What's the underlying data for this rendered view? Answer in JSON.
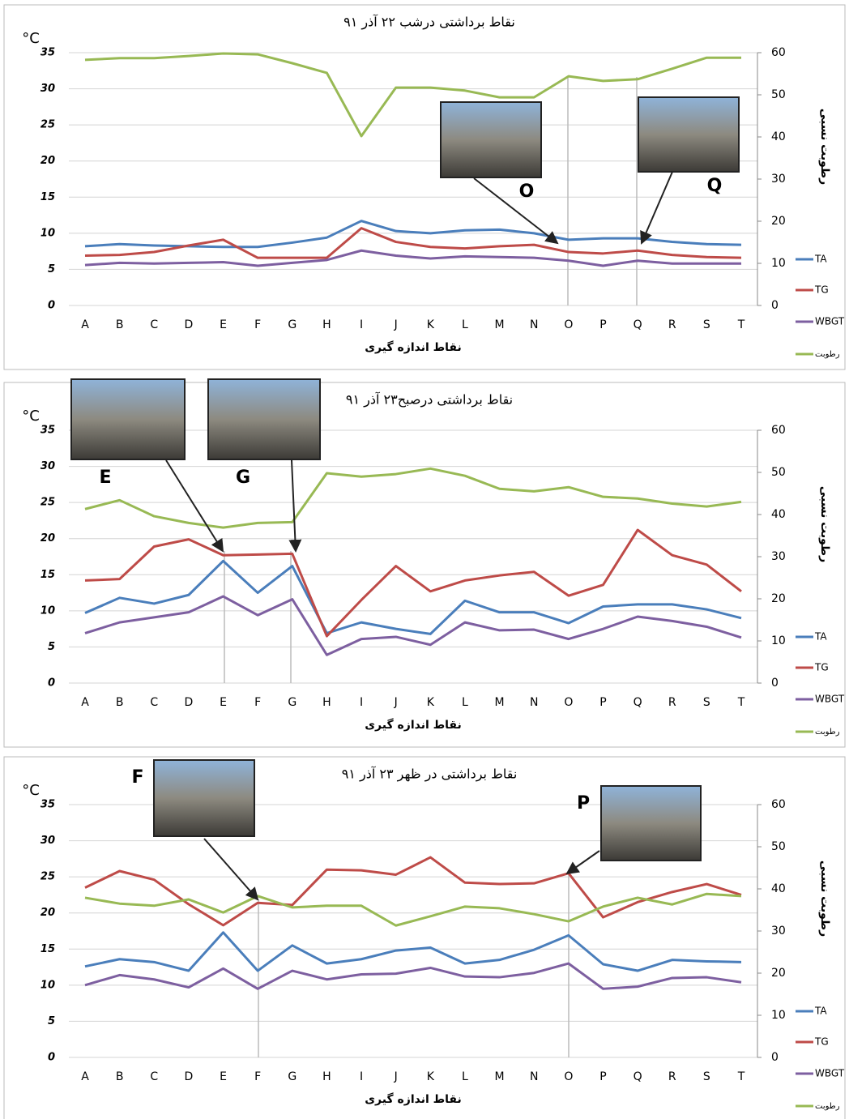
{
  "chart_data": [
    {
      "type": "line",
      "title": "نقاط برداشتی درشب ۲۲ آذر ۹۱",
      "y_label": "°C",
      "y2_label": "رطوبت نسبی",
      "x_label": "نقاط اندازه گیری",
      "annotations": [
        "O",
        "Q"
      ],
      "categories": [
        "A",
        "B",
        "C",
        "D",
        "E",
        "F",
        "G",
        "H",
        "I",
        "J",
        "K",
        "L",
        "M",
        "N",
        "O",
        "P",
        "Q",
        "R",
        "S",
        "T"
      ],
      "ylim": [
        0,
        35
      ],
      "yticks": [
        0,
        5,
        10,
        15,
        20,
        25,
        30,
        35
      ],
      "y2lim": [
        0,
        60
      ],
      "y2ticks": [
        0,
        10,
        20,
        30,
        40,
        50,
        60
      ],
      "grid": true,
      "legend": "right",
      "series": [
        {
          "name": "TA",
          "color": "#4a7ebb",
          "values": [
            8.2,
            8.5,
            8.3,
            8.2,
            8.1,
            8.1,
            8.7,
            9.4,
            11.7,
            10.3,
            10.0,
            10.4,
            10.5,
            10.0,
            9.1,
            9.3,
            9.3,
            8.8,
            8.5,
            8.4
          ]
        },
        {
          "name": "TG",
          "color": "#be4b48",
          "values": [
            6.9,
            7.0,
            7.4,
            8.3,
            9.1,
            6.6,
            6.6,
            6.6,
            10.7,
            8.8,
            8.1,
            7.9,
            8.2,
            8.4,
            7.4,
            7.2,
            7.6,
            7.0,
            6.7,
            6.6
          ]
        },
        {
          "name": "WBGT",
          "color": "#7d5fa0",
          "values": [
            5.6,
            5.9,
            5.8,
            5.9,
            6.0,
            5.5,
            5.9,
            6.3,
            7.6,
            6.9,
            6.5,
            6.8,
            6.7,
            6.6,
            6.2,
            5.5,
            6.2,
            5.8,
            5.8,
            5.8
          ]
        },
        {
          "name": "رطوبت",
          "color": "#98b954",
          "axis": "y2",
          "values": [
            58.3,
            58.7,
            58.7,
            59.2,
            59.8,
            59.6,
            57.5,
            55.2,
            40.2,
            51.7,
            51.7,
            51.0,
            49.4,
            49.4,
            54.4,
            53.3,
            53.7,
            56.2,
            58.8,
            58.8
          ]
        }
      ]
    },
    {
      "type": "line",
      "title": "نقاط برداشتی درصبح۲۳ آذر ۹۱",
      "y_label": "°C",
      "y2_label": "رطوبت نسبی",
      "x_label": "نقاط اندازه گیری",
      "annotations": [
        "E",
        "G"
      ],
      "categories": [
        "A",
        "B",
        "C",
        "D",
        "E",
        "F",
        "G",
        "H",
        "I",
        "J",
        "K",
        "L",
        "M",
        "N",
        "O",
        "P",
        "Q",
        "R",
        "S",
        "T"
      ],
      "ylim": [
        0,
        35
      ],
      "yticks": [
        0,
        5,
        10,
        15,
        20,
        25,
        30,
        35
      ],
      "y2lim": [
        0,
        60
      ],
      "y2ticks": [
        0,
        10,
        20,
        30,
        40,
        50,
        60
      ],
      "grid": true,
      "legend": "right",
      "series": [
        {
          "name": "TA",
          "color": "#4a7ebb",
          "values": [
            9.7,
            11.8,
            11.0,
            12.2,
            16.9,
            12.5,
            16.2,
            6.9,
            8.4,
            7.5,
            6.8,
            11.4,
            9.8,
            9.8,
            8.3,
            10.6,
            10.9,
            10.9,
            10.2,
            9.0
          ]
        },
        {
          "name": "TG",
          "color": "#be4b48",
          "values": [
            14.2,
            14.4,
            18.9,
            19.9,
            17.7,
            17.8,
            17.9,
            6.5,
            11.5,
            16.2,
            12.7,
            14.2,
            14.9,
            15.4,
            12.1,
            13.6,
            21.2,
            17.7,
            16.4,
            12.7
          ]
        },
        {
          "name": "WBGT",
          "color": "#7d5fa0",
          "values": [
            6.9,
            8.4,
            9.1,
            9.8,
            12.0,
            9.4,
            11.6,
            3.9,
            6.1,
            6.4,
            5.3,
            8.4,
            7.3,
            7.4,
            6.1,
            7.5,
            9.2,
            8.6,
            7.8,
            6.3
          ]
        },
        {
          "name": "رطوبت",
          "color": "#98b954",
          "axis": "y2",
          "values": [
            41.3,
            43.4,
            39.6,
            38.0,
            36.9,
            38.0,
            38.2,
            49.8,
            49.0,
            49.6,
            50.9,
            49.2,
            46.1,
            45.5,
            46.5,
            44.2,
            43.8,
            42.6,
            41.9,
            43.0
          ]
        }
      ]
    },
    {
      "type": "line",
      "title": "نقاط برداشتی در ظهر ۲۳ آذر ۹۱",
      "y_label": "°C",
      "y2_label": "رطوبت نسبی",
      "x_label": "نقاط اندازه گیری",
      "annotations": [
        "F",
        "P"
      ],
      "categories": [
        "A",
        "B",
        "C",
        "D",
        "E",
        "F",
        "G",
        "H",
        "I",
        "J",
        "K",
        "L",
        "M",
        "N",
        "O",
        "P",
        "Q",
        "R",
        "S",
        "T"
      ],
      "ylim": [
        0,
        35
      ],
      "yticks": [
        0,
        5,
        10,
        15,
        20,
        25,
        30,
        35
      ],
      "y2lim": [
        0,
        60
      ],
      "y2ticks": [
        0,
        10,
        20,
        30,
        40,
        50,
        60
      ],
      "grid": true,
      "legend": "right",
      "series": [
        {
          "name": "TA",
          "color": "#4a7ebb",
          "values": [
            12.6,
            13.6,
            13.2,
            12.0,
            17.3,
            12.0,
            15.5,
            13.0,
            13.6,
            14.8,
            15.2,
            13.0,
            13.5,
            14.9,
            16.9,
            12.9,
            12.0,
            13.5,
            13.3,
            13.2
          ]
        },
        {
          "name": "TG",
          "color": "#be4b48",
          "values": [
            23.5,
            25.8,
            24.6,
            21.2,
            18.3,
            21.4,
            21.1,
            26.0,
            25.9,
            25.3,
            27.7,
            24.2,
            24.0,
            24.1,
            25.5,
            19.4,
            21.5,
            22.9,
            24.0,
            22.5
          ]
        },
        {
          "name": "WBGT",
          "color": "#7d5fa0",
          "values": [
            10.0,
            11.4,
            10.8,
            9.7,
            12.3,
            9.5,
            12.0,
            10.8,
            11.5,
            11.6,
            12.4,
            11.2,
            11.1,
            11.7,
            13.0,
            9.5,
            9.8,
            11.0,
            11.1,
            10.4
          ]
        },
        {
          "name": "رطوبت",
          "color": "#98b954",
          "axis": "y2",
          "values": [
            37.9,
            36.5,
            36.0,
            37.5,
            34.4,
            38.3,
            35.6,
            36.0,
            36.0,
            31.3,
            33.5,
            35.8,
            35.4,
            34.0,
            32.3,
            35.8,
            37.9,
            36.3,
            38.8,
            38.3
          ]
        }
      ]
    }
  ]
}
